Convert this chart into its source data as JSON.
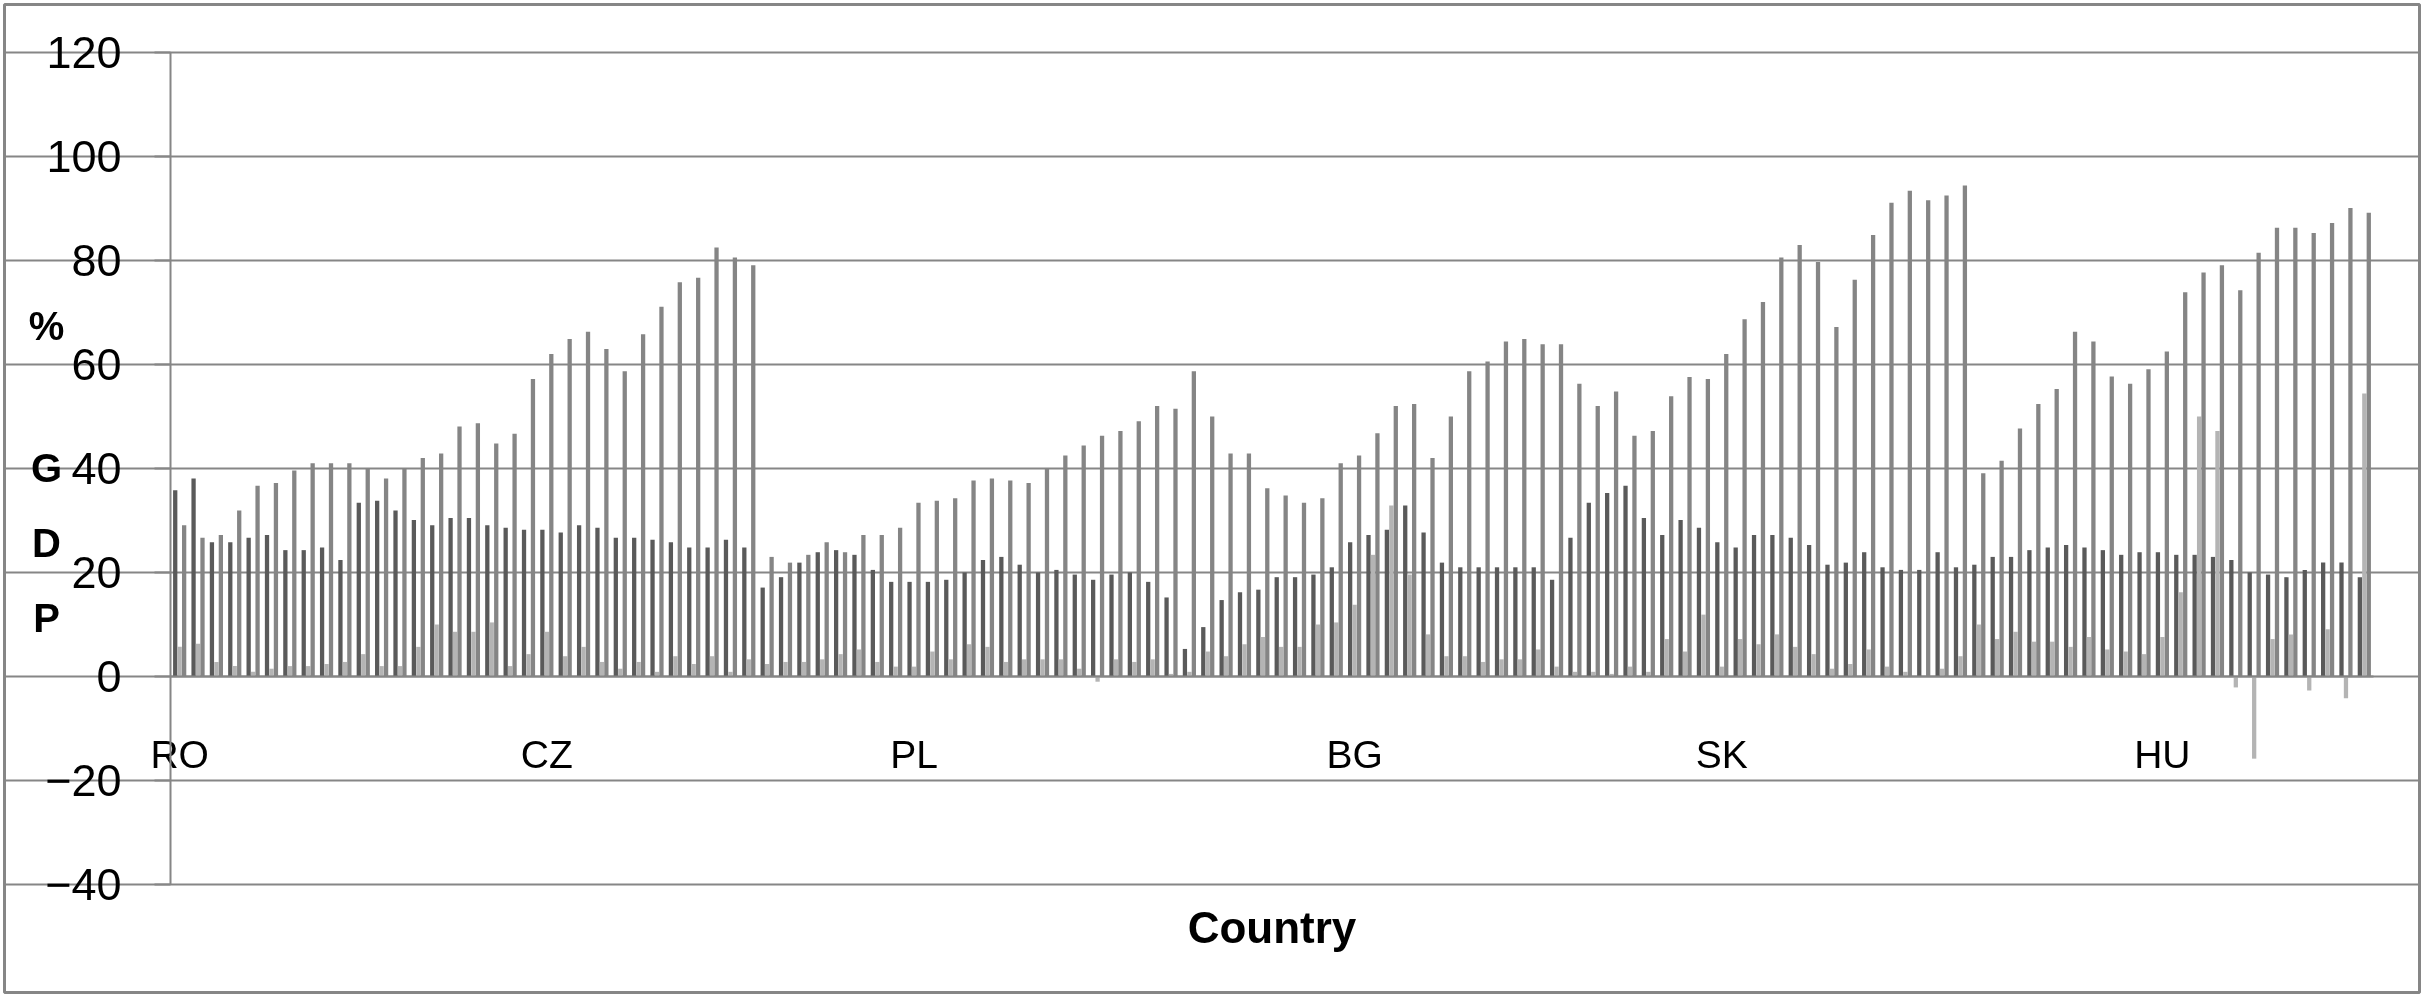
{
  "chart_data": {
    "type": "bar",
    "xlabel": "Country",
    "ylabel": "% GDP",
    "categories": [
      "RO",
      null,
      null,
      null,
      null,
      null,
      null,
      null,
      null,
      null,
      null,
      null,
      null,
      null,
      null,
      null,
      null,
      null,
      null,
      null,
      "CZ",
      null,
      null,
      null,
      null,
      null,
      null,
      null,
      null,
      null,
      null,
      null,
      null,
      null,
      null,
      null,
      null,
      null,
      null,
      null,
      "PL",
      null,
      null,
      null,
      null,
      null,
      null,
      null,
      null,
      null,
      null,
      null,
      null,
      null,
      null,
      null,
      null,
      null,
      null,
      null,
      null,
      null,
      null,
      null,
      "BG",
      null,
      null,
      null,
      null,
      null,
      null,
      null,
      null,
      null,
      null,
      null,
      null,
      null,
      null,
      null,
      null,
      null,
      null,
      null,
      "SK",
      null,
      null,
      null,
      null,
      null,
      null,
      null,
      null,
      null,
      null,
      null,
      null,
      null,
      null,
      null,
      null,
      null,
      null,
      null,
      null,
      null,
      null,
      null,
      "HU",
      null,
      null,
      null,
      null,
      null,
      null,
      null,
      null,
      null,
      null,
      null
    ],
    "series": [
      {
        "color": "#5a5a5a",
        "values": [
          35.8,
          38.1,
          25.8,
          25.8,
          26.7,
          27.2,
          24.3,
          24.3,
          24.8,
          22.4,
          33.4,
          33.8,
          31.9,
          30.1,
          29.1,
          30.5,
          30.5,
          29.1,
          28.6,
          28.2,
          28.2,
          27.7,
          29.1,
          28.6,
          26.7,
          26.7,
          26.3,
          25.8,
          24.8,
          24.8,
          26.3,
          24.8,
          17.1,
          19.1,
          21.9,
          23.9,
          24.3,
          23.4,
          20.5,
          18.2,
          18.2,
          18.2,
          18.6,
          20.0,
          22.4,
          23.0,
          21.5,
          20.0,
          20.5,
          19.6,
          18.6,
          19.6,
          20.0,
          18.2,
          15.2,
          5.3,
          9.5,
          14.7,
          16.2,
          16.7,
          19.1,
          19.1,
          19.6,
          21.0,
          25.8,
          27.2,
          28.2,
          32.9,
          27.7,
          21.9,
          21.0,
          21.0,
          21.0,
          21.0,
          21.0,
          18.6,
          26.7,
          33.4,
          35.3,
          36.7,
          30.5,
          27.2,
          30.1,
          28.6,
          25.8,
          24.8,
          27.2,
          27.2,
          26.7,
          25.3,
          21.5,
          21.9,
          23.9,
          21.0,
          20.5,
          20.5,
          23.9,
          21.0,
          21.5,
          23.0,
          23.0,
          24.3,
          24.8,
          25.3,
          24.8,
          24.3,
          23.4,
          23.9,
          23.9,
          23.4,
          23.4,
          23.0,
          22.4,
          20.0,
          19.6,
          19.1,
          20.5,
          21.9,
          21.9,
          19.1
        ]
      },
      {
        "color": "#b4b4b4",
        "values": [
          5.7,
          6.3,
          2.8,
          2.0,
          0.9,
          1.5,
          2.0,
          2.0,
          2.4,
          2.8,
          4.3,
          2.0,
          2.0,
          5.7,
          10.0,
          8.6,
          8.6,
          10.4,
          2.0,
          4.3,
          8.6,
          3.9,
          5.7,
          2.8,
          1.5,
          2.8,
          0.9,
          3.9,
          2.4,
          3.9,
          0.9,
          3.3,
          2.4,
          2.8,
          2.8,
          3.3,
          4.3,
          5.2,
          2.8,
          1.9,
          1.9,
          4.8,
          3.3,
          6.2,
          5.7,
          2.8,
          3.3,
          3.3,
          3.3,
          1.5,
          -1.0,
          3.3,
          2.8,
          3.3,
          0.5,
          0.9,
          4.8,
          3.9,
          6.2,
          7.6,
          5.7,
          5.7,
          10.0,
          10.4,
          13.8,
          23.4,
          32.9,
          19.6,
          8.1,
          3.9,
          3.9,
          2.8,
          3.3,
          3.3,
          5.2,
          1.9,
          0.9,
          0.9,
          0.5,
          1.9,
          0.9,
          7.2,
          4.8,
          11.9,
          1.9,
          7.2,
          6.2,
          8.1,
          5.7,
          4.3,
          1.5,
          2.4,
          5.2,
          1.9,
          0.9,
          0.0,
          1.5,
          3.9,
          10.0,
          7.2,
          8.6,
          6.7,
          6.7,
          5.7,
          7.6,
          5.2,
          4.8,
          4.3,
          7.6,
          16.2,
          50.0,
          47.2,
          -2.1,
          -15.8,
          7.2,
          8.1,
          -2.7,
          9.1,
          -4.2,
          54.4
        ]
      },
      {
        "color": "#858585",
        "values": [
          29.1,
          26.7,
          27.2,
          31.9,
          36.7,
          37.2,
          39.6,
          41.0,
          41.0,
          41.0,
          40.1,
          38.1,
          40.1,
          42.0,
          42.9,
          48.1,
          48.7,
          44.8,
          46.7,
          57.2,
          62.0,
          64.9,
          66.3,
          63.0,
          58.7,
          65.8,
          71.1,
          75.8,
          76.7,
          82.5,
          80.6,
          79.1,
          23.0,
          21.9,
          23.4,
          25.8,
          23.9,
          27.2,
          27.2,
          28.6,
          33.4,
          33.8,
          34.3,
          37.7,
          38.1,
          37.7,
          37.2,
          40.1,
          42.5,
          44.4,
          46.3,
          47.2,
          49.1,
          52.0,
          51.5,
          58.7,
          50.0,
          42.9,
          42.9,
          36.2,
          34.8,
          33.4,
          34.3,
          41.0,
          42.5,
          46.8,
          52.0,
          52.4,
          42.0,
          50.0,
          58.7,
          60.6,
          64.4,
          64.9,
          63.9,
          63.9,
          56.3,
          52.0,
          54.8,
          46.3,
          47.2,
          53.9,
          57.6,
          57.2,
          62.0,
          68.7,
          72.0,
          80.6,
          83.0,
          79.7,
          67.2,
          76.3,
          84.9,
          91.1,
          93.4,
          91.6,
          92.5,
          94.4,
          39.1,
          41.5,
          47.7,
          52.4,
          55.3,
          66.3,
          64.4,
          57.7,
          56.3,
          59.1,
          62.5,
          73.9,
          77.7,
          79.1,
          74.3,
          81.5,
          86.3,
          86.3,
          85.3,
          87.2,
          90.1,
          89.2
        ]
      }
    ],
    "ylim": [
      -40,
      120
    ],
    "yticks": [
      -40,
      -20,
      0,
      20,
      40,
      60,
      80,
      100,
      120
    ],
    "grid": "y"
  }
}
